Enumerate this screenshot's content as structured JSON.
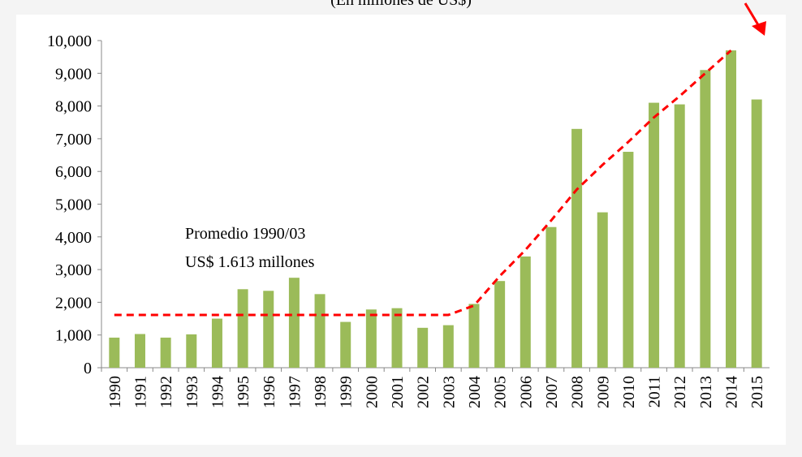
{
  "chart_data": {
    "type": "bar",
    "title": "(En millones de US$)",
    "categories": [
      "1990",
      "1991",
      "1992",
      "1993",
      "1994",
      "1995",
      "1996",
      "1997",
      "1998",
      "1999",
      "2000",
      "2001",
      "2002",
      "2003",
      "2004",
      "2005",
      "2006",
      "2007",
      "2008",
      "2009",
      "2010",
      "2011",
      "2012",
      "2013",
      "2014",
      "2015"
    ],
    "series": [
      {
        "color": "#9bbb59",
        "values": [
          920,
          1030,
          920,
          1020,
          1500,
          2400,
          2350,
          2750,
          2250,
          1400,
          1780,
          1820,
          1220,
          1300,
          1950,
          2650,
          3400,
          4300,
          7300,
          4750,
          6600,
          8100,
          8050,
          9100,
          9700,
          8200
        ]
      },
      {
        "type": "line",
        "color": "#ff0000",
        "dashed": true,
        "values": [
          1613,
          1613,
          1613,
          1613,
          1613,
          1613,
          1613,
          1613,
          1613,
          1613,
          1613,
          1613,
          1613,
          1613,
          1900,
          2800,
          3600,
          4500,
          5450,
          6200,
          6900,
          7650,
          8300,
          9000,
          9700,
          null
        ]
      }
    ],
    "annotations": [
      "Promedio  1990/03",
      "US$  1.613  millones"
    ],
    "ylim": [
      0,
      10000
    ],
    "yticks": [
      0,
      {
        "value": 1000,
        "label": "1,000"
      },
      {
        "value": 2000,
        "label": "2,000"
      },
      {
        "value": 3000,
        "label": "3,000"
      },
      {
        "value": 4000,
        "label": "4,000"
      },
      {
        "value": 5000,
        "label": "5,000"
      },
      {
        "value": 6000,
        "label": "6,000"
      },
      {
        "value": 7000,
        "label": "7,000"
      },
      {
        "value": 8000,
        "label": "8,000"
      },
      {
        "value": 9000,
        "label": "9,000"
      },
      {
        "value": 10000,
        "label": "10,000"
      }
    ]
  }
}
